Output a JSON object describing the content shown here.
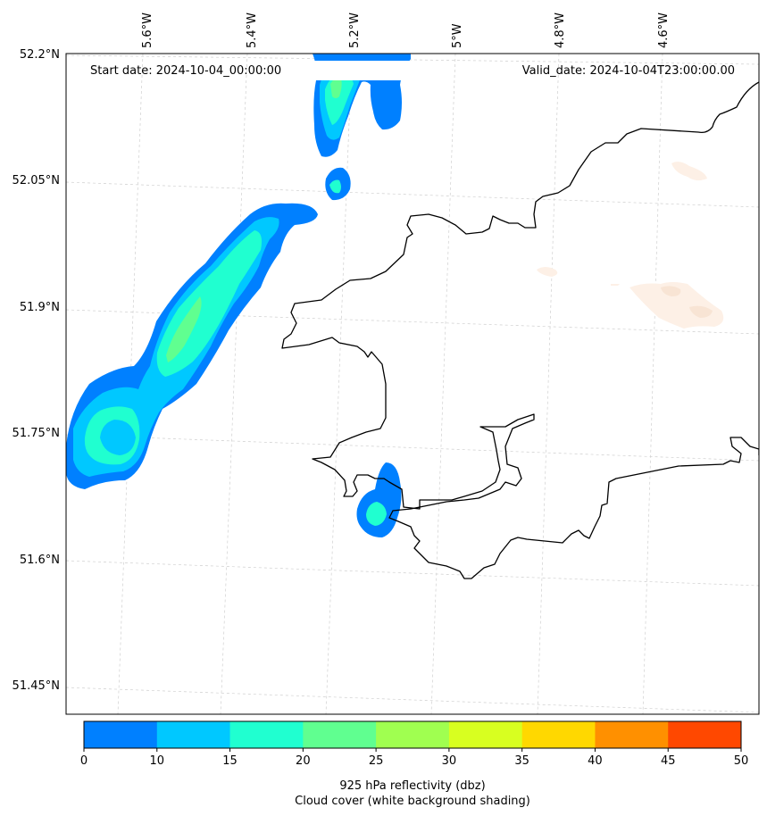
{
  "map": {
    "start_label": "Start date: 2024-10-04_00:00:00",
    "valid_label": "Valid_date: 2024-10-04T23:00:00.00",
    "lon_ticks": [
      "5.6°W",
      "5.4°W",
      "5.2°W",
      "5°W",
      "4.8°W",
      "4.6°W"
    ],
    "lat_ticks": [
      "52.2°N",
      "52.05°N",
      "51.9°N",
      "51.75°N",
      "51.6°N",
      "51.45°N"
    ],
    "colorbar": {
      "label_line1": "925 hPa reflectivity (dbz)",
      "label_line2": "Cloud cover (white background shading)",
      "ticks": [
        "0",
        "10",
        "15",
        "20",
        "25",
        "30",
        "35",
        "40",
        "45",
        "50"
      ],
      "colors": [
        "#0080ff",
        "#00c8ff",
        "#20ffd0",
        "#60ff90",
        "#a0ff50",
        "#d8ff20",
        "#ffd800",
        "#ff9000",
        "#ff4800"
      ]
    },
    "fill_colors": {
      "level1": "#0080ff",
      "level2": "#00c8ff",
      "level3": "#20ffd0",
      "level4": "#60ff90",
      "cloud": "#fdf0e6"
    }
  }
}
